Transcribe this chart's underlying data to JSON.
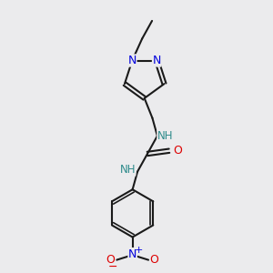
{
  "bg_color": "#ebebed",
  "bond_color": "#1a1a1a",
  "n_color": "#0000dd",
  "o_color": "#dd0000",
  "h_color": "#2e8b8b",
  "line_width": 1.5,
  "font_size_atom": 9,
  "font_size_h": 8.5,
  "font_size_small": 7,
  "figsize": [
    3.0,
    3.0
  ],
  "dpi": 100,
  "xlim": [
    55,
    225
  ],
  "ylim": [
    15,
    285
  ]
}
